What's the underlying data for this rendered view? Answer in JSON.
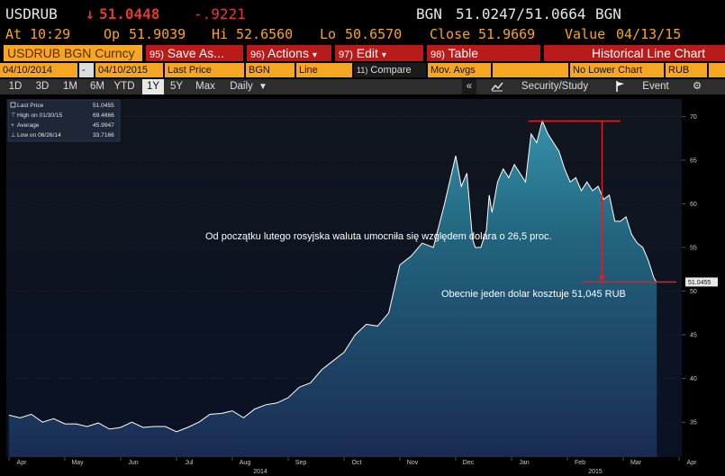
{
  "quote": {
    "ticker": "USDRUB",
    "arrow": "↓",
    "last": "51.0448",
    "change": "-.9221",
    "bgn1": "BGN",
    "bid_ask": "51.0247/51.0664",
    "bgn2": "BGN",
    "at_label": "At",
    "at_time": "10:29",
    "op_label": "Op",
    "op_value": "51.9039",
    "hi_label": "Hi",
    "hi_value": "52.6560",
    "lo_label": "Lo",
    "lo_value": "50.6570",
    "close_label": "Close",
    "close_value": "51.9669",
    "value_label": "Value",
    "value_date": "04/13/15"
  },
  "toolbar": {
    "security": "USDRUB BGN Curncy",
    "save_num": "95)",
    "save_label": "Save As...",
    "actions_num": "96)",
    "actions_label": "Actions",
    "edit_num": "97)",
    "edit_label": "Edit",
    "table_num": "98)",
    "table_label": "Table",
    "title": "Historical Line Chart",
    "caret": "▾"
  },
  "fields": {
    "start_date": "04/10/2014",
    "dash": "-",
    "end_date": "04/10/2015",
    "field": "Last Price",
    "source": "BGN",
    "style": "Line",
    "compare_num": "11)",
    "compare": "Compare",
    "mov_avgs": "Mov. Avgs",
    "lower_chart": "No Lower Chart",
    "currency": "RUB"
  },
  "periods": {
    "items": [
      "1D",
      "3D",
      "1M",
      "6M",
      "YTD",
      "1Y",
      "5Y",
      "Max"
    ],
    "selected": "1Y",
    "frequency": "Daily",
    "freq_caret": "▼",
    "collapse": "«",
    "security_study": "Security/Study",
    "event": "Event",
    "gear": "⚙"
  },
  "legend": {
    "last_label": "Last Price",
    "last_value": "51.0455",
    "high_label": "High on 01/30/15",
    "high_value": "69.4666",
    "avg_label": "Average",
    "avg_value": "45.9947",
    "low_label": "Low on 06/26/14",
    "low_value": "33.7166"
  },
  "annotations": {
    "line1": "Od początku lutego rosyjska waluta umocniła się względem dolara o 26,5 proc.",
    "line2": "Obecnie jeden dolar kosztuje 51,045 RUB"
  },
  "colors": {
    "accent_orange": "#f5a623",
    "menu_red": "#b91a1a",
    "price_red": "#e23b2e",
    "area_top": "#2f8ba2",
    "area_bottom": "#1d2f55",
    "marker_red": "#e02020"
  },
  "chart_data": {
    "type": "area",
    "x_ticks": [
      "Apr",
      "May",
      "Jun",
      "Jul",
      "Aug",
      "Sep",
      "Oct",
      "Nov",
      "Dec",
      "Jan",
      "Feb",
      "Mar",
      "Apr"
    ],
    "year_labels": [
      "2014",
      "2015"
    ],
    "y_ticks": [
      35,
      40,
      45,
      50,
      55,
      60,
      65,
      70
    ],
    "ylim": [
      31,
      72
    ],
    "last_price_label": "51.0455",
    "series": [
      {
        "name": "Last Price",
        "x": [
          0,
          0.2,
          0.4,
          0.6,
          0.8,
          1.0,
          1.2,
          1.4,
          1.6,
          1.8,
          2.0,
          2.2,
          2.4,
          2.6,
          2.8,
          3.0,
          3.2,
          3.4,
          3.6,
          3.8,
          4.0,
          4.2,
          4.4,
          4.6,
          4.8,
          5.0,
          5.2,
          5.4,
          5.6,
          5.8,
          6.0,
          6.2,
          6.4,
          6.6,
          6.8,
          7.0,
          7.2,
          7.4,
          7.6,
          7.8,
          8.0,
          8.1,
          8.2,
          8.3,
          8.35,
          8.45,
          8.55,
          8.6,
          8.65,
          8.75,
          8.85,
          8.95,
          9.05,
          9.15,
          9.25,
          9.35,
          9.45,
          9.55,
          9.65,
          9.75,
          9.85,
          9.95,
          10.05,
          10.15,
          10.25,
          10.35,
          10.45,
          10.55,
          10.65,
          10.75,
          10.85,
          10.95,
          11.05,
          11.15,
          11.25,
          11.35,
          11.45,
          11.55,
          11.6
        ],
        "values": [
          35.8,
          35.5,
          35.9,
          35.0,
          35.4,
          34.8,
          34.8,
          34.5,
          34.9,
          34.2,
          34.4,
          35.0,
          34.4,
          34.5,
          34.5,
          33.9,
          34.4,
          35.0,
          35.9,
          36.0,
          36.3,
          35.5,
          36.5,
          37.0,
          37.2,
          37.8,
          39.0,
          39.5,
          41.0,
          42.0,
          43.0,
          45.0,
          46.2,
          46.0,
          47.5,
          53.0,
          54.0,
          55.5,
          55.0,
          60.0,
          65.5,
          62.0,
          63.5,
          56.0,
          55.0,
          55.0,
          57.0,
          61.0,
          59.0,
          62.5,
          64.0,
          63.0,
          64.5,
          63.5,
          62.5,
          68.0,
          67.0,
          69.5,
          68.0,
          67.0,
          66.0,
          64.0,
          62.5,
          63.0,
          61.5,
          62.5,
          61.5,
          62.0,
          60.5,
          61.0,
          58.0,
          58.0,
          58.5,
          56.5,
          55.5,
          55.0,
          53.5,
          51.5,
          51.0
        ]
      }
    ],
    "high_marker": {
      "value": 69.4666
    },
    "last_marker": {
      "value": 51.0455
    }
  }
}
